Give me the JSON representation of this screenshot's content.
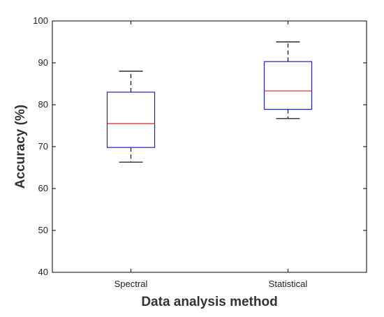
{
  "chart_data": {
    "type": "box",
    "title": "",
    "xlabel": "Data analysis method",
    "ylabel": "Accuracy (%)",
    "ylim": [
      40,
      100
    ],
    "yticks": [
      40,
      50,
      60,
      70,
      80,
      90,
      100
    ],
    "grid": false,
    "categories": [
      "Spectral",
      "Statistical"
    ],
    "boxes": [
      {
        "category": "Spectral",
        "whisker_low": 66.3,
        "q1": 69.8,
        "median": 75.5,
        "q3": 83.0,
        "whisker_high": 88.0
      },
      {
        "category": "Statistical",
        "whisker_low": 76.7,
        "q1": 78.9,
        "median": 83.3,
        "q3": 90.3,
        "whisker_high": 95.0
      }
    ],
    "colors": {
      "box": "#2020c8",
      "median": "#e02020",
      "whisker": "#000000",
      "axes": "#000000"
    }
  }
}
